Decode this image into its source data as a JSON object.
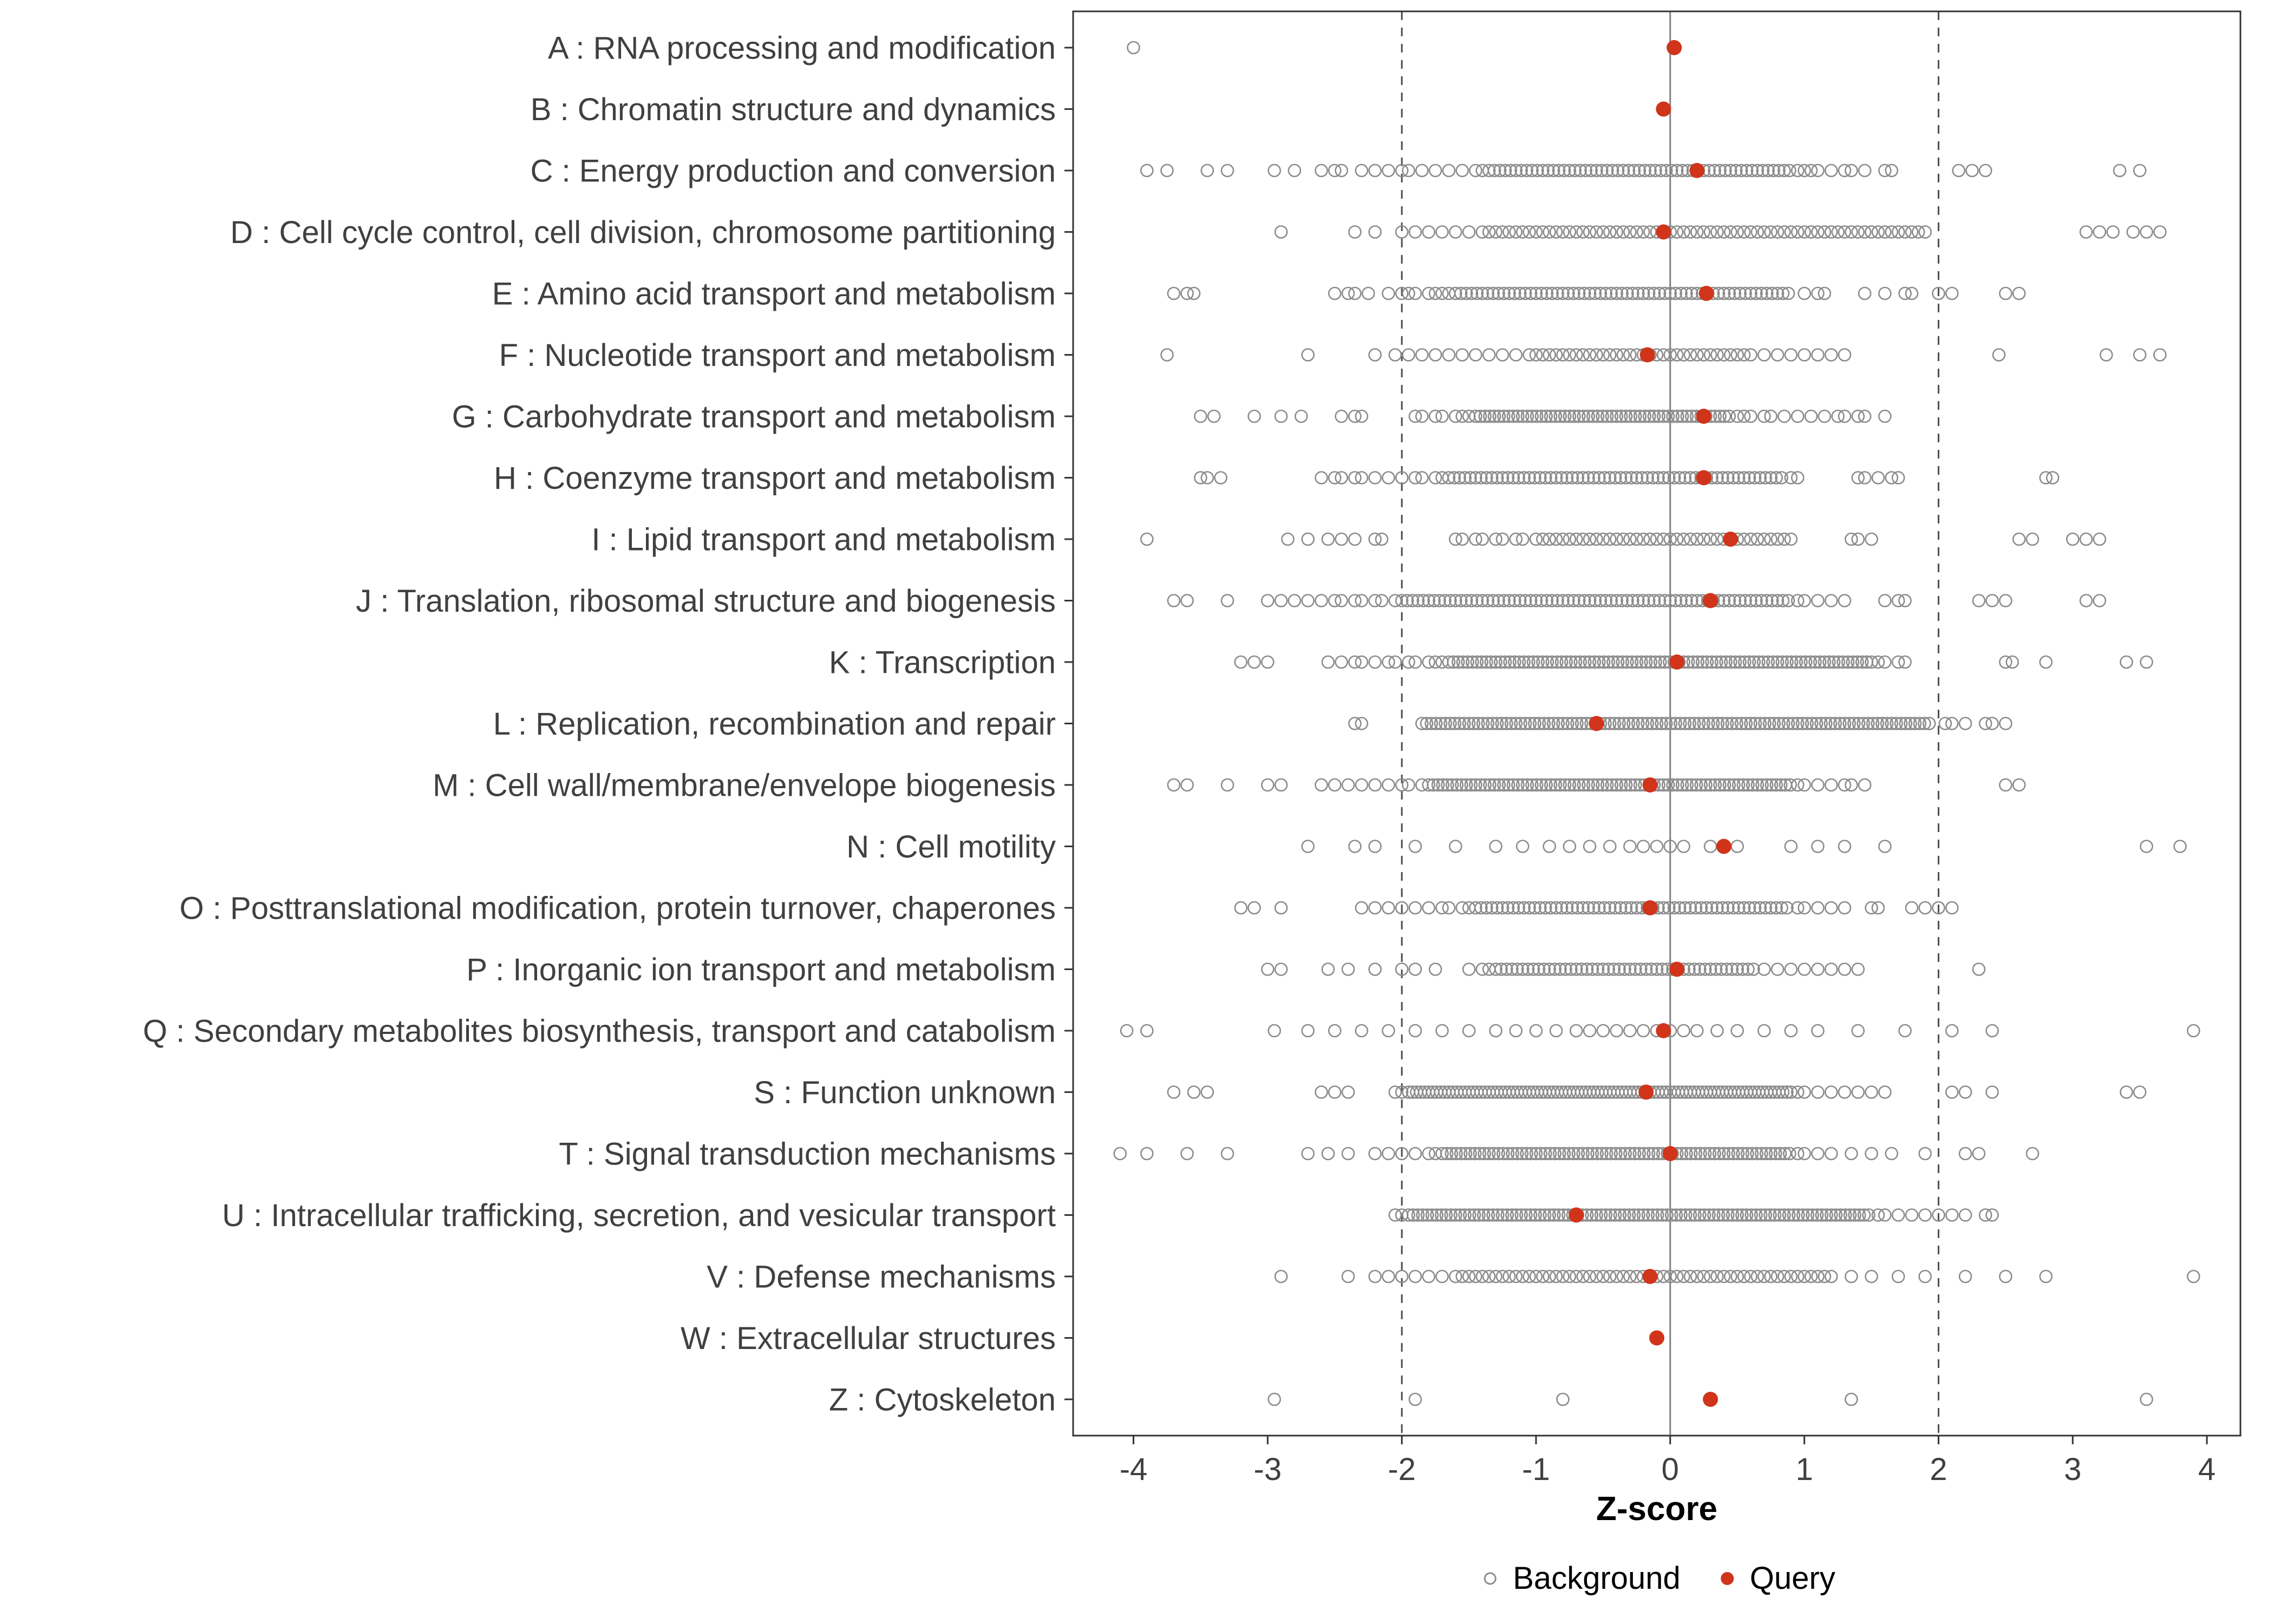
{
  "chart_data": {
    "type": "scatter",
    "title": "",
    "xlabel": "Z-score",
    "x_domain": [
      -4.45,
      4.25
    ],
    "x_ticks": [
      -4,
      -3,
      -2,
      -1,
      0,
      1,
      2,
      3,
      4
    ],
    "reference_lines": {
      "solid": [
        0
      ],
      "dashed": [
        -2,
        2
      ]
    },
    "legend": {
      "background_label": "Background",
      "query_label": "Query"
    },
    "colors": {
      "background_stroke": "#8c8c8c",
      "query_fill": "#d0341b",
      "axis_text": "#404040",
      "panel_border": "#333333",
      "dashed_line": "#4d4d4d",
      "zero_line": "#808080",
      "tick_mark": "#333333"
    },
    "categories": [
      {
        "letter": "A",
        "label": "A : RNA processing and modification",
        "query": 0.03,
        "bg_points": [
          -4.0
        ],
        "bg_bands": []
      },
      {
        "letter": "B",
        "label": "B : Chromatin structure and dynamics",
        "query": -0.05,
        "bg_points": [],
        "bg_bands": []
      },
      {
        "letter": "C",
        "label": "C : Energy production and conversion",
        "query": 0.2,
        "bg_points": [
          -3.9,
          -3.75,
          -3.45,
          -3.3,
          -2.95,
          -2.8,
          -2.6,
          -2.5,
          -2.45,
          -2.3,
          -2.2,
          -2.1,
          -2.0,
          -1.95,
          -1.85,
          -1.75,
          -1.65,
          -1.55,
          -1.45,
          -1.4,
          0.95,
          1.0,
          1.05,
          1.1,
          1.2,
          1.3,
          1.35,
          1.45,
          1.6,
          1.65,
          2.15,
          2.25,
          2.35,
          3.35,
          3.5
        ],
        "bg_bands": [
          [
            -1.35,
            0.9,
            0.04
          ]
        ]
      },
      {
        "letter": "D",
        "label": "D : Cell cycle control, cell division, chromosome partitioning",
        "query": -0.05,
        "bg_points": [
          -2.9,
          -2.35,
          -2.2,
          -2.0,
          -1.9,
          -1.8,
          -1.7,
          -1.6,
          -1.5,
          3.1,
          3.2,
          3.3,
          3.45,
          3.55,
          3.65
        ],
        "bg_bands": [
          [
            -1.4,
            1.9,
            0.05
          ]
        ]
      },
      {
        "letter": "E",
        "label": "E : Amino acid transport and metabolism",
        "query": 0.27,
        "bg_points": [
          -3.7,
          -3.6,
          -3.55,
          -2.5,
          -2.4,
          -2.35,
          -2.25,
          -2.1,
          -2.0,
          -1.95,
          -1.9,
          -1.8,
          -1.75,
          -1.7,
          -1.65,
          1.0,
          1.1,
          1.15,
          1.45,
          1.6,
          1.75,
          1.8,
          2.0,
          2.1,
          2.5,
          2.6
        ],
        "bg_bands": [
          [
            -1.6,
            0.9,
            0.04
          ]
        ]
      },
      {
        "letter": "F",
        "label": "F : Nucleotide transport and metabolism",
        "query": -0.17,
        "bg_points": [
          -3.75,
          -2.7,
          -2.2,
          -2.05,
          -1.95,
          -1.85,
          -1.75,
          -1.65,
          -1.55,
          -1.45,
          -1.35,
          -1.25,
          -1.15,
          -1.05,
          0.6,
          0.7,
          0.8,
          0.9,
          1.0,
          1.1,
          1.2,
          1.3,
          2.45,
          3.25,
          3.5,
          3.65
        ],
        "bg_bands": [
          [
            -1.0,
            0.55,
            0.05
          ]
        ]
      },
      {
        "letter": "G",
        "label": "G : Carbohydrate transport and metabolism",
        "query": 0.25,
        "bg_points": [
          -3.5,
          -3.4,
          -3.1,
          -2.9,
          -2.75,
          -2.45,
          -2.35,
          -2.3,
          -1.9,
          -1.85,
          -1.75,
          -1.7,
          -1.6,
          -1.55,
          -1.5,
          0.5,
          0.55,
          0.6,
          0.7,
          0.75,
          0.85,
          0.95,
          1.05,
          1.15,
          1.25,
          1.3,
          1.4,
          1.45,
          1.6
        ],
        "bg_bands": [
          [
            -1.45,
            0.45,
            0.035
          ]
        ]
      },
      {
        "letter": "H",
        "label": "H : Coenzyme transport and metabolism",
        "query": 0.25,
        "bg_points": [
          -3.5,
          -3.45,
          -3.35,
          -2.6,
          -2.5,
          -2.45,
          -2.35,
          -2.3,
          -2.2,
          -2.1,
          -2.0,
          -1.9,
          -1.85,
          -1.75,
          -1.7,
          0.9,
          0.95,
          1.4,
          1.45,
          1.55,
          1.65,
          1.7,
          2.8,
          2.85
        ],
        "bg_bands": [
          [
            -1.65,
            0.85,
            0.04
          ]
        ]
      },
      {
        "letter": "I",
        "label": "I : Lipid transport and metabolism",
        "query": 0.45,
        "bg_points": [
          -3.9,
          -2.85,
          -2.7,
          -2.55,
          -2.45,
          -2.35,
          -2.2,
          -2.15,
          -1.6,
          -1.55,
          -1.45,
          -1.4,
          -1.3,
          -1.25,
          -1.15,
          -1.1,
          -1.0,
          0.8,
          0.85,
          0.9,
          1.35,
          1.4,
          1.5,
          2.6,
          2.7,
          3.0,
          3.1,
          3.2
        ],
        "bg_bands": [
          [
            -0.95,
            0.75,
            0.05
          ]
        ]
      },
      {
        "letter": "J",
        "label": "J : Translation, ribosomal structure and biogenesis",
        "query": 0.3,
        "bg_points": [
          -3.7,
          -3.6,
          -3.3,
          -3.0,
          -2.9,
          -2.8,
          -2.7,
          -2.6,
          -2.5,
          -2.45,
          -2.35,
          -2.3,
          -2.2,
          -2.15,
          -2.05,
          0.95,
          1.0,
          1.1,
          1.2,
          1.3,
          1.6,
          1.7,
          1.75,
          2.3,
          2.4,
          2.5,
          3.1,
          3.2
        ],
        "bg_bands": [
          [
            -2.0,
            0.9,
            0.04
          ]
        ]
      },
      {
        "letter": "K",
        "label": "K : Transcription",
        "query": 0.05,
        "bg_points": [
          -3.2,
          -3.1,
          -3.0,
          -2.55,
          -2.45,
          -2.35,
          -2.3,
          -2.2,
          -2.1,
          -2.05,
          -1.95,
          -1.9,
          -1.8,
          -1.75,
          -1.7,
          1.55,
          1.6,
          1.7,
          1.75,
          2.5,
          2.55,
          2.8,
          3.4,
          3.55
        ],
        "bg_bands": [
          [
            -1.65,
            1.5,
            0.035
          ]
        ]
      },
      {
        "letter": "L",
        "label": "L : Replication, recombination and repair",
        "query": -0.55,
        "bg_points": [
          -2.35,
          -2.3,
          2.05,
          2.1,
          2.2,
          2.35,
          2.4,
          2.5
        ],
        "bg_bands": [
          [
            -1.85,
            1.95,
            0.035
          ]
        ]
      },
      {
        "letter": "M",
        "label": "M : Cell wall/membrane/envelope biogenesis",
        "query": -0.15,
        "bg_points": [
          -3.7,
          -3.6,
          -3.3,
          -3.0,
          -2.9,
          -2.6,
          -2.5,
          -2.4,
          -2.3,
          -2.2,
          -2.1,
          -2.0,
          -1.95,
          -1.85,
          0.95,
          1.0,
          1.1,
          1.2,
          1.3,
          1.35,
          1.45,
          2.5,
          2.6
        ],
        "bg_bands": [
          [
            -1.8,
            0.9,
            0.035
          ]
        ]
      },
      {
        "letter": "N",
        "label": "N : Cell motility",
        "query": 0.4,
        "bg_points": [
          -2.7,
          -2.35,
          -2.2,
          -1.9,
          -1.6,
          -1.3,
          -1.1,
          -0.9,
          -0.75,
          -0.6,
          -0.45,
          -0.3,
          -0.2,
          -0.1,
          0.0,
          0.1,
          0.3,
          0.5,
          0.9,
          1.1,
          1.3,
          1.6,
          3.55,
          3.8
        ],
        "bg_bands": []
      },
      {
        "letter": "O",
        "label": "O : Posttranslational modification, protein turnover, chaperones",
        "query": -0.15,
        "bg_points": [
          -3.2,
          -3.1,
          -2.9,
          -2.3,
          -2.2,
          -2.1,
          -2.0,
          -1.9,
          -1.8,
          -1.7,
          -1.65,
          -1.55,
          -1.5,
          0.95,
          1.0,
          1.1,
          1.2,
          1.3,
          1.5,
          1.55,
          1.8,
          1.9,
          2.0,
          2.1
        ],
        "bg_bands": [
          [
            -1.45,
            0.9,
            0.04
          ]
        ]
      },
      {
        "letter": "P",
        "label": "P : Inorganic ion transport and metabolism",
        "query": 0.05,
        "bg_points": [
          -3.0,
          -2.9,
          -2.55,
          -2.4,
          -2.2,
          -2.0,
          -1.9,
          -1.75,
          -1.5,
          -1.4,
          -1.35,
          0.7,
          0.8,
          0.9,
          1.0,
          1.1,
          1.2,
          1.3,
          1.4,
          2.3
        ],
        "bg_bands": [
          [
            -1.3,
            0.65,
            0.04
          ]
        ]
      },
      {
        "letter": "Q",
        "label": "Q : Secondary metabolites biosynthesis, transport and catabolism",
        "query": -0.05,
        "bg_points": [
          -4.05,
          -3.9,
          -2.95,
          -2.7,
          -2.5,
          -2.3,
          -2.1,
          -1.9,
          -1.7,
          -1.5,
          -1.3,
          -1.15,
          -1.0,
          -0.85,
          -0.7,
          -0.6,
          -0.5,
          -0.4,
          -0.3,
          -0.2,
          -0.1,
          0.0,
          0.1,
          0.2,
          0.35,
          0.5,
          0.7,
          0.9,
          1.1,
          1.4,
          1.75,
          2.1,
          2.4,
          3.9
        ],
        "bg_bands": []
      },
      {
        "letter": "S",
        "label": "S : Function unknown",
        "query": -0.18,
        "bg_points": [
          -3.7,
          -3.55,
          -3.45,
          -2.6,
          -2.5,
          -2.4,
          -2.05,
          -2.0,
          0.95,
          1.0,
          1.1,
          1.2,
          1.3,
          1.4,
          1.5,
          1.6,
          2.1,
          2.2,
          2.4,
          3.4,
          3.5
        ],
        "bg_bands": [
          [
            -1.95,
            0.9,
            0.03
          ]
        ]
      },
      {
        "letter": "T",
        "label": "T : Signal transduction mechanisms",
        "query": 0.0,
        "bg_points": [
          -4.1,
          -3.9,
          -3.6,
          -3.3,
          -2.7,
          -2.55,
          -2.4,
          -2.2,
          -2.1,
          -2.0,
          -1.9,
          -1.8,
          -1.75,
          0.95,
          1.0,
          1.1,
          1.2,
          1.35,
          1.5,
          1.65,
          1.9,
          2.2,
          2.3,
          2.7
        ],
        "bg_bands": [
          [
            -1.7,
            0.9,
            0.035
          ]
        ]
      },
      {
        "letter": "U",
        "label": "U : Intracellular trafficking, secretion, and vesicular transport",
        "query": -0.7,
        "bg_points": [
          -2.05,
          -2.0,
          1.55,
          1.6,
          1.7,
          1.8,
          1.9,
          2.0,
          2.1,
          2.2,
          2.35,
          2.4
        ],
        "bg_bands": [
          [
            -1.95,
            1.5,
            0.035
          ]
        ]
      },
      {
        "letter": "V",
        "label": "V : Defense mechanisms",
        "query": -0.15,
        "bg_points": [
          -2.9,
          -2.4,
          -2.2,
          -2.1,
          -2.0,
          -1.9,
          -1.8,
          -1.7,
          1.35,
          1.5,
          1.7,
          1.9,
          2.2,
          2.5,
          2.8,
          3.9
        ],
        "bg_bands": [
          [
            -1.6,
            1.2,
            0.05
          ]
        ]
      },
      {
        "letter": "W",
        "label": "W : Extracellular structures",
        "query": -0.1,
        "bg_points": [],
        "bg_bands": []
      },
      {
        "letter": "Z",
        "label": "Z : Cytoskeleton",
        "query": 0.3,
        "bg_points": [
          -2.95,
          -1.9,
          -0.8,
          1.35,
          3.55
        ],
        "bg_bands": []
      }
    ]
  }
}
